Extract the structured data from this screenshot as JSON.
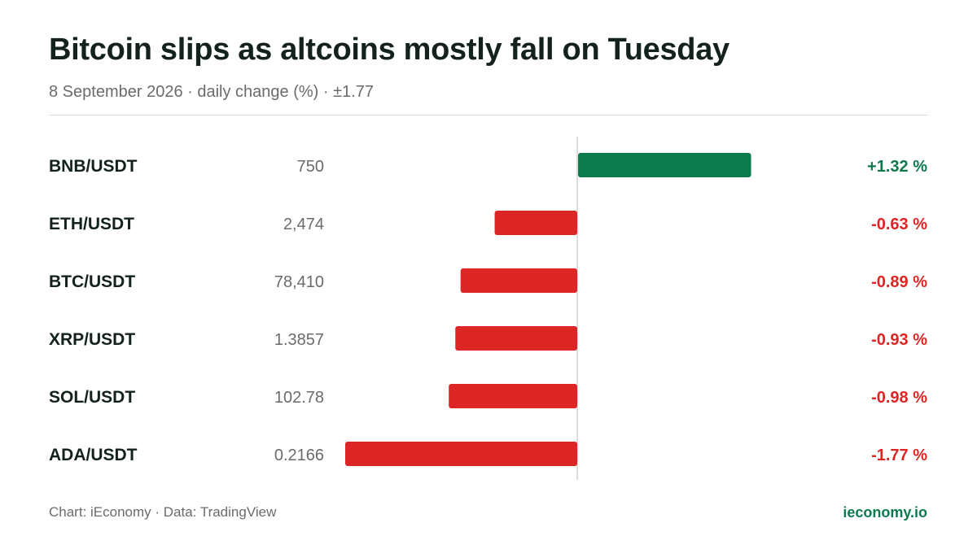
{
  "header": {
    "title": "Bitcoin slips as altcoins mostly fall on Tuesday",
    "subtitle": "8 September 2026 · daily change (%) · ±1.77"
  },
  "footer": {
    "source": "Chart: iEconomy · Data: TradingView",
    "site": "ieconomy.io"
  },
  "colors": {
    "positive": "#0d7a4e",
    "negative": "#dc2626",
    "brand": "#0d7a4e",
    "axis": "#d4d4d4"
  },
  "chart_data": {
    "type": "bar",
    "orientation": "horizontal",
    "unit": "%",
    "xlim": [
      -1.77,
      1.77
    ],
    "grid": false,
    "rows": [
      {
        "pair": "BNB/USDT",
        "price": "750",
        "change": 1.32,
        "label": "+1.32 %"
      },
      {
        "pair": "ETH/USDT",
        "price": "2,474",
        "change": -0.63,
        "label": "-0.63 %"
      },
      {
        "pair": "BTC/USDT",
        "price": "78,410",
        "change": -0.89,
        "label": "-0.89 %"
      },
      {
        "pair": "XRP/USDT",
        "price": "1.3857",
        "change": -0.93,
        "label": "-0.93 %"
      },
      {
        "pair": "SOL/USDT",
        "price": "102.78",
        "change": -0.98,
        "label": "-0.98 %"
      },
      {
        "pair": "ADA/USDT",
        "price": "0.2166",
        "change": -1.77,
        "label": "-1.77 %"
      }
    ]
  }
}
